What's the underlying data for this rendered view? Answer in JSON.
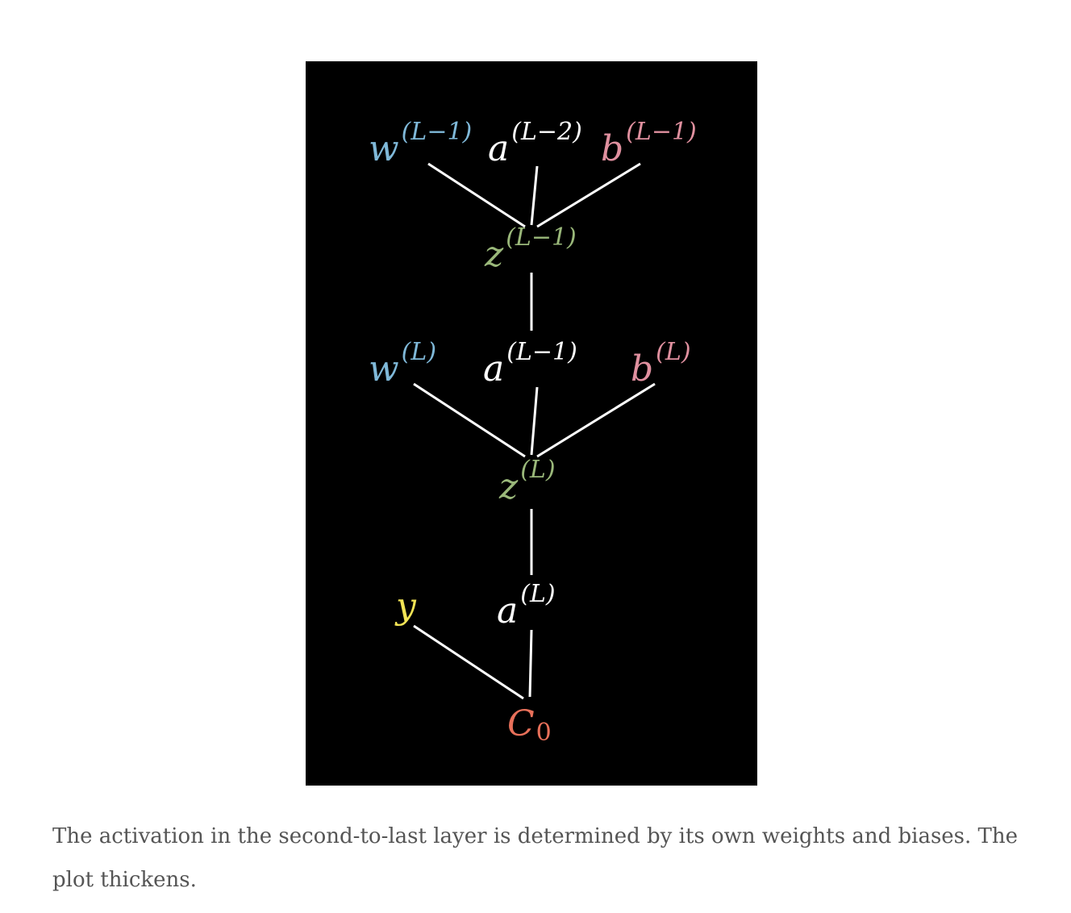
{
  "diagram": {
    "nodes": {
      "w_lm1": {
        "base": "w",
        "sup_open": "(",
        "sup_var": "L",
        "sup_rest": "−1)",
        "color": "#7fb8d8"
      },
      "a_lm2": {
        "base": "a",
        "sup_open": "(",
        "sup_var": "L",
        "sup_rest": "−2)",
        "color": "#ffffff"
      },
      "b_lm1": {
        "base": "b",
        "sup_open": "(",
        "sup_var": "L",
        "sup_rest": "−1)",
        "color": "#e0909f"
      },
      "z_lm1": {
        "base": "z",
        "sup_open": "(",
        "sup_var": "L",
        "sup_rest": "−1)",
        "color": "#9ab87a"
      },
      "w_l": {
        "base": "w",
        "sup_open": "(",
        "sup_var": "L",
        "sup_rest": ")",
        "color": "#7fb8d8"
      },
      "a_lm1": {
        "base": "a",
        "sup_open": "(",
        "sup_var": "L",
        "sup_rest": "−1)",
        "color": "#ffffff"
      },
      "b_l": {
        "base": "b",
        "sup_open": "(",
        "sup_var": "L",
        "sup_rest": ")",
        "color": "#e0909f"
      },
      "z_l": {
        "base": "z",
        "sup_open": "(",
        "sup_var": "L",
        "sup_rest": ")",
        "color": "#9ab87a"
      },
      "y": {
        "base": "y",
        "color": "#f2e455"
      },
      "a_l": {
        "base": "a",
        "sup_open": "(",
        "sup_var": "L",
        "sup_rest": ")",
        "color": "#ffffff"
      },
      "c0": {
        "base": "C",
        "sub": "0",
        "color": "#e8705a"
      }
    },
    "edges": [
      {
        "from": "w_lm1",
        "to": "z_lm1"
      },
      {
        "from": "a_lm2",
        "to": "z_lm1"
      },
      {
        "from": "b_lm1",
        "to": "z_lm1"
      },
      {
        "from": "z_lm1",
        "to": "a_lm1"
      },
      {
        "from": "w_l",
        "to": "z_l"
      },
      {
        "from": "a_lm1",
        "to": "z_l"
      },
      {
        "from": "b_l",
        "to": "z_l"
      },
      {
        "from": "z_l",
        "to": "a_l"
      },
      {
        "from": "y",
        "to": "c0"
      },
      {
        "from": "a_l",
        "to": "c0"
      }
    ],
    "edge_color": "#ffffff"
  },
  "caption": "The activation in the second-to-last layer is determined by its own weights and biases. The plot thickens."
}
